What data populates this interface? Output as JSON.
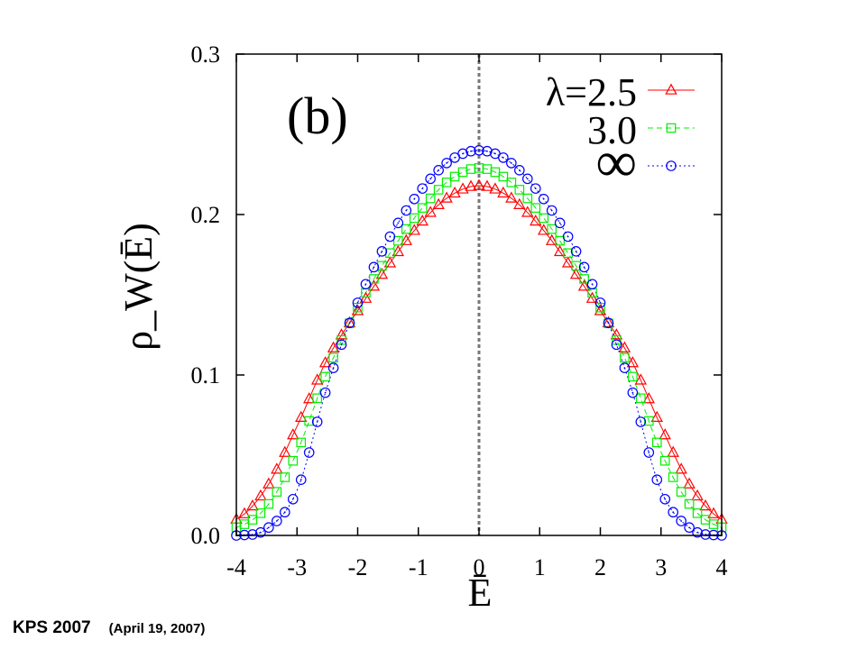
{
  "chart_data": {
    "type": "scatter",
    "panel_label": "(b)",
    "xlabel": "Ē",
    "ylabel": "ρ_W(Ē)",
    "xlim": [
      -4,
      4
    ],
    "ylim": [
      0,
      0.3
    ],
    "x_ticks": [
      -4,
      -3,
      -2,
      -1,
      0,
      1,
      2,
      3,
      4
    ],
    "x_tick_labels": [
      "-4",
      "-3",
      "-2",
      "-1",
      "0",
      "1",
      "2",
      "3",
      "4"
    ],
    "y_ticks": [
      0,
      0.1,
      0.2,
      0.3
    ],
    "y_tick_labels": [
      "0.0",
      "0.1",
      "0.2",
      "0.3"
    ],
    "vertical_reference_line_x": 0,
    "legend_position": "top-right",
    "grid": false,
    "series": [
      {
        "name": "λ=2.5",
        "marker": "triangle",
        "line_style": "solid",
        "color": "#ff0000",
        "x": [
          -4.0,
          -3.5,
          -3.0,
          -2.5,
          -2.0,
          -1.5,
          -1.0,
          -0.5,
          0.0,
          0.5,
          1.0,
          1.5,
          2.0,
          2.5,
          3.0,
          3.5,
          4.0
        ],
        "y": [
          0.01,
          0.03,
          0.068,
          0.11,
          0.14,
          0.168,
          0.193,
          0.211,
          0.218,
          0.211,
          0.193,
          0.168,
          0.14,
          0.11,
          0.068,
          0.03,
          0.01
        ]
      },
      {
        "name": "3.0",
        "marker": "square",
        "line_style": "dashed",
        "color": "#00ee00",
        "x": [
          -4.0,
          -3.5,
          -3.0,
          -2.5,
          -2.0,
          -1.5,
          -1.0,
          -0.5,
          0.0,
          0.5,
          1.0,
          1.5,
          2.0,
          2.5,
          3.0,
          3.5,
          4.0
        ],
        "y": [
          0.005,
          0.018,
          0.052,
          0.102,
          0.142,
          0.174,
          0.201,
          0.221,
          0.229,
          0.221,
          0.201,
          0.174,
          0.142,
          0.102,
          0.052,
          0.018,
          0.005
        ]
      },
      {
        "name": "∞",
        "marker": "circle",
        "line_style": "dotted",
        "color": "#0000ff",
        "x": [
          -4.0,
          -3.5,
          -3.0,
          -2.5,
          -2.0,
          -1.5,
          -1.0,
          -0.5,
          0.0,
          0.5,
          1.0,
          1.5,
          2.0,
          2.5,
          3.0,
          3.5,
          4.0
        ],
        "y": [
          0.0,
          0.004,
          0.028,
          0.093,
          0.145,
          0.184,
          0.213,
          0.233,
          0.24,
          0.233,
          0.213,
          0.184,
          0.145,
          0.093,
          0.028,
          0.004,
          0.0
        ]
      }
    ]
  },
  "footer": {
    "text": "KPS 2007",
    "date": "(April 19, 2007)"
  }
}
